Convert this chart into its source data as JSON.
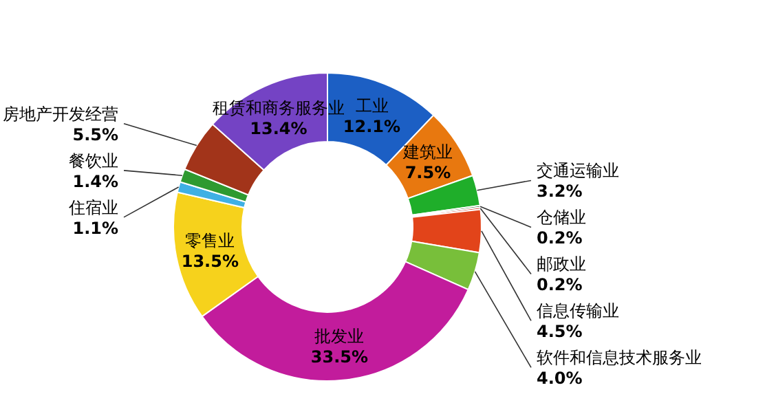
{
  "chart_data": {
    "type": "donut",
    "categories": [
      "工业",
      "建筑业",
      "交通运输业",
      "仓储业",
      "邮政业",
      "信息传输业",
      "软件和信息技术服务业",
      "批发业",
      "零售业",
      "住宿业",
      "餐饮业",
      "房地产开发经营",
      "租赁和商务服务业"
    ],
    "values": [
      12.1,
      7.5,
      3.2,
      0.2,
      0.2,
      4.5,
      4.0,
      33.5,
      13.5,
      1.1,
      1.4,
      5.5,
      13.4
    ],
    "value_labels": [
      "12.1%",
      "7.5%",
      "3.2%",
      "0.2%",
      "0.2%",
      "4.5%",
      "4.0%",
      "33.5%",
      "13.5%",
      "1.1%",
      "1.4%",
      "5.5%",
      "13.4%"
    ],
    "colors": [
      "#1c5fc4",
      "#e8780f",
      "#1fae2a",
      "#2f6b2a",
      "#c8321e",
      "#e2441a",
      "#78bf3a",
      "#c21c9c",
      "#f6d21c",
      "#3fb0e4",
      "#2e9a30",
      "#a2341a",
      "#7443c4"
    ]
  }
}
